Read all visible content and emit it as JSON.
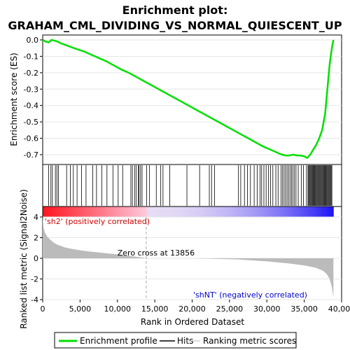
{
  "chart_data": {
    "type": "line",
    "title_line1": "Enrichment plot:",
    "title_line2": "GRAHAM_CML_DIVIDING_VS_NORMAL_QUIESCENT_UP",
    "top_panel": {
      "ylabel": "Enrichment score (ES)",
      "ylim": [
        -0.76,
        0.03
      ],
      "yticks": [
        "0.0",
        "-0.1",
        "-0.2",
        "-0.3",
        "-0.4",
        "-0.5",
        "-0.6",
        "-0.7"
      ],
      "ytick_values": [
        0.0,
        -0.1,
        -0.2,
        -0.3,
        -0.4,
        -0.5,
        -0.6,
        -0.7
      ],
      "series": [
        {
          "name": "Enrichment profile",
          "color": "#00e000",
          "x": [
            0,
            400,
            800,
            1200,
            1600,
            2000,
            2400,
            3000,
            3600,
            4500,
            5500,
            6500,
            7500,
            8500,
            9500,
            10500,
            11500,
            12500,
            13500,
            14500,
            15500,
            16500,
            17500,
            18500,
            19500,
            20500,
            21500,
            22500,
            23500,
            24500,
            25500,
            26500,
            27500,
            28500,
            29500,
            30500,
            31500,
            32000,
            32500,
            33000,
            33500,
            34000,
            34500,
            35000,
            35400,
            35800,
            36200,
            36600,
            37000,
            37400,
            37800,
            38100,
            38400,
            38700,
            38900
          ],
          "y": [
            0.0,
            -0.01,
            -0.015,
            0.0,
            -0.005,
            -0.01,
            -0.02,
            -0.03,
            -0.04,
            -0.055,
            -0.07,
            -0.09,
            -0.11,
            -0.13,
            -0.155,
            -0.18,
            -0.2,
            -0.225,
            -0.25,
            -0.275,
            -0.3,
            -0.325,
            -0.35,
            -0.375,
            -0.4,
            -0.425,
            -0.45,
            -0.475,
            -0.5,
            -0.525,
            -0.55,
            -0.575,
            -0.6,
            -0.625,
            -0.65,
            -0.67,
            -0.69,
            -0.7,
            -0.705,
            -0.705,
            -0.7,
            -0.705,
            -0.705,
            -0.71,
            -0.72,
            -0.7,
            -0.67,
            -0.64,
            -0.6,
            -0.55,
            -0.45,
            -0.3,
            -0.15,
            -0.05,
            0.0
          ]
        }
      ]
    },
    "hits_panel": {
      "hit_positions": [
        800,
        1100,
        1300,
        1700,
        1900,
        2100,
        3200,
        3700,
        4100,
        4600,
        5200,
        5800,
        6700,
        7200,
        7900,
        8600,
        9400,
        10100,
        10700,
        11800,
        12000,
        12300,
        12500,
        12800,
        12900,
        13100,
        13300,
        13900,
        14300,
        15200,
        15800,
        16100,
        17000,
        19300,
        21000,
        22300,
        22600,
        23000,
        26200,
        26500,
        27000,
        27400,
        27800,
        28300,
        28700,
        29100,
        29300,
        29600,
        29900,
        30200,
        30500,
        30800,
        31200,
        31500,
        31900,
        32100,
        32300,
        32500,
        32700,
        32900,
        33100,
        33300,
        33500,
        33700,
        33900,
        34200,
        34600,
        34900,
        35300,
        35500,
        35600,
        35700,
        35800,
        35900,
        36000,
        36100,
        36200,
        36300,
        36400,
        36500,
        36600,
        36700,
        36800,
        36900,
        37000,
        37100,
        37200,
        37300,
        37400,
        37500,
        37600,
        37700,
        37800,
        37900,
        38000,
        38100,
        38200,
        38300,
        38400,
        38500,
        38600,
        38700
      ]
    },
    "metric_panel": {
      "ylabel": "Ranked list metric (Signal2Noise)",
      "ylim": [
        -4,
        4
      ],
      "yticks": [
        "4",
        "2",
        "0",
        "-2",
        "-4"
      ],
      "ytick_values": [
        4,
        2,
        0,
        -2,
        -4
      ],
      "zero_cross_label": "Zero cross at 13856",
      "zero_cross": 13856,
      "pos_label": "'sh2' (positively correlated)",
      "neg_label": "'shNT' (negatively correlated)",
      "x": [
        0,
        100,
        300,
        600,
        1000,
        1500,
        2000,
        3000,
        4000,
        5000,
        6000,
        7000,
        8000,
        9000,
        10000,
        11000,
        12000,
        13000,
        13856,
        20000,
        26000,
        30000,
        33000,
        35000,
        36500,
        37500,
        38000,
        38400,
        38700,
        38900
      ],
      "values": [
        4.0,
        3.0,
        2.5,
        2.1,
        1.8,
        1.5,
        1.3,
        1.05,
        0.9,
        0.78,
        0.68,
        0.6,
        0.52,
        0.45,
        0.38,
        0.3,
        0.2,
        0.1,
        0.0,
        0.0,
        -0.1,
        -0.3,
        -0.5,
        -0.7,
        -0.9,
        -1.2,
        -1.5,
        -2.0,
        -2.8,
        -3.8
      ]
    },
    "xaxis": {
      "xlabel": "Rank in Ordered Dataset",
      "xlim": [
        0,
        40000
      ],
      "xticks": [
        "0",
        "5,000",
        "10,000",
        "15,000",
        "20,000",
        "25,000",
        "30,000",
        "35,000",
        "40,000"
      ],
      "xtick_values": [
        0,
        5000,
        10000,
        15000,
        20000,
        25000,
        30000,
        35000,
        40000
      ]
    },
    "legend": {
      "placement": "bottom",
      "entries": [
        {
          "label": "Enrichment profile",
          "color": "#00e000"
        },
        {
          "label": "Hits",
          "color": "#000000"
        },
        {
          "label": "Ranking metric scores",
          "color": "#bbbbbb"
        }
      ]
    }
  }
}
